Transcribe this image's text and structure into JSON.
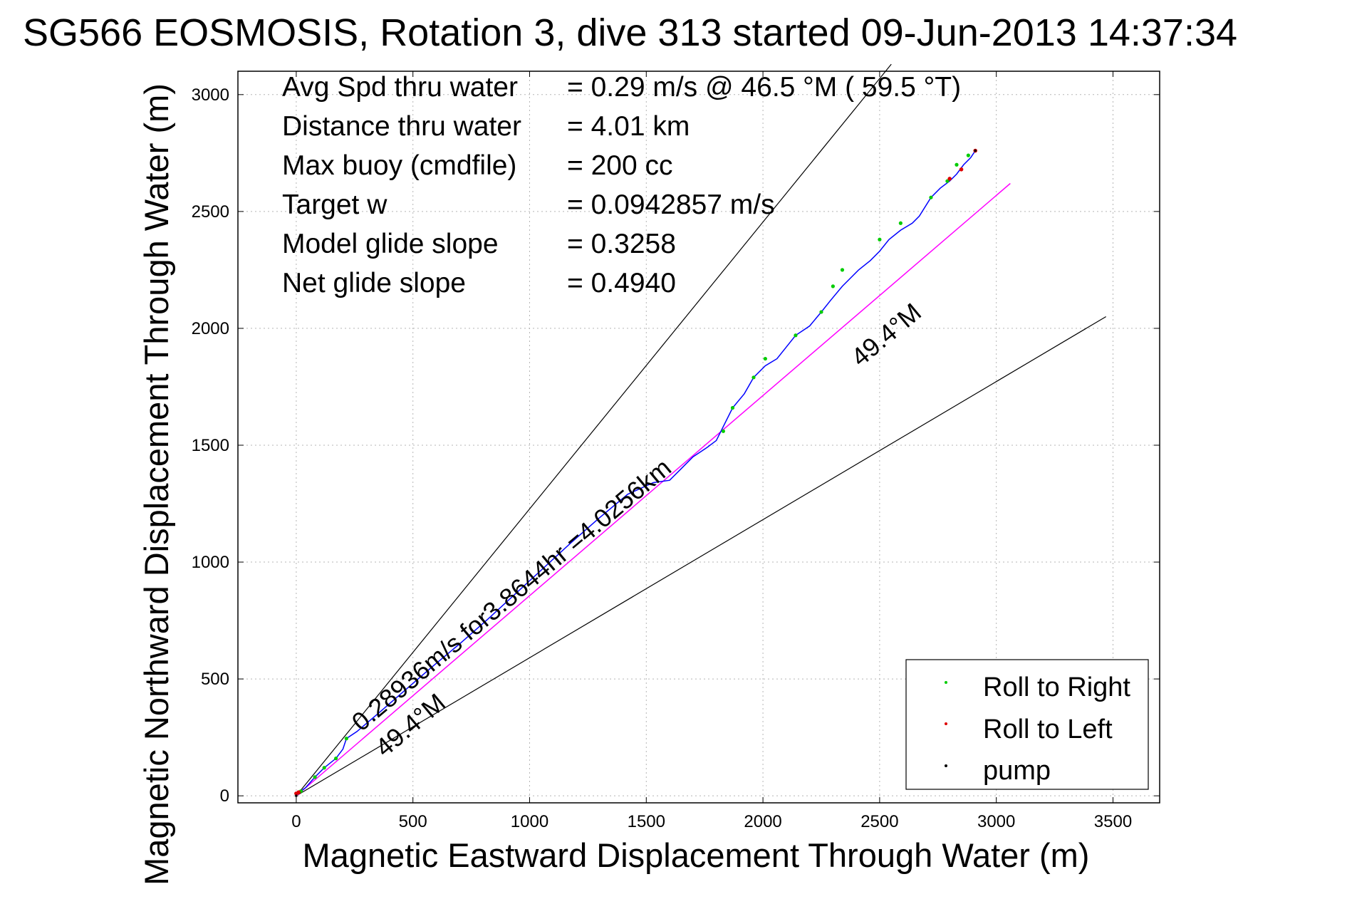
{
  "chart_data": {
    "type": "line",
    "title": "SG566 EOSMOSIS, Rotation 3, dive 313 started 09-Jun-2013 14:37:34",
    "xlabel": "Magnetic Eastward Displacement Through Water (m)",
    "ylabel": "Magnetic Northward Displacement Through Water (m)",
    "xlim": [
      -250,
      3700
    ],
    "ylim": [
      -30,
      3100
    ],
    "xticks": [
      0,
      500,
      1000,
      1500,
      2000,
      2500,
      3000,
      3500
    ],
    "yticks": [
      0,
      500,
      1000,
      1500,
      2000,
      2500,
      3000
    ],
    "grid": true,
    "legend": {
      "placement": "bottom-right",
      "entries": [
        {
          "label": "Roll to Right",
          "color": "#00cc00"
        },
        {
          "label": "Roll to Left",
          "color": "#dd0000"
        },
        {
          "label": "pump",
          "color": "#000000"
        }
      ]
    },
    "info_lines": [
      {
        "label": "Avg Spd thru water",
        "value": "=  0.29 m/s @  46.5 °M ( 59.5 °T)"
      },
      {
        "label": "Distance thru water",
        "value": "=  4.01 km"
      },
      {
        "label": "Max buoy (cmdfile)",
        "value": "= 200 cc"
      },
      {
        "label": "Target w",
        "value": "= 0.0942857 m/s"
      },
      {
        "label": "Model glide slope",
        "value": "= 0.3258"
      },
      {
        "label": "Net glide slope",
        "value": "= 0.4940"
      }
    ],
    "annotations": {
      "course_upper": "49.4°M",
      "course_lower": "49.4°M",
      "speed_note": "0.28936m/s for3.8644hr =4.0256km"
    },
    "series": [
      {
        "name": "track",
        "color": "#0000ff",
        "x": [
          0,
          20,
          40,
          80,
          120,
          170,
          200,
          215,
          260,
          360,
          470,
          580,
          700,
          820,
          940,
          1060,
          1180,
          1300,
          1420,
          1530,
          1600,
          1650,
          1700,
          1760,
          1800,
          1820,
          1870,
          1920,
          1960,
          2010,
          2060,
          2100,
          2140,
          2200,
          2250,
          2290,
          2340,
          2380,
          2410,
          2460,
          2500,
          2540,
          2590,
          2640,
          2670,
          2720,
          2760,
          2800,
          2830,
          2860,
          2890,
          2910
        ],
        "y": [
          10,
          20,
          35,
          80,
          120,
          160,
          200,
          245,
          275,
          360,
          455,
          550,
          650,
          755,
          865,
          975,
          1085,
          1190,
          1290,
          1340,
          1350,
          1400,
          1450,
          1490,
          1520,
          1560,
          1660,
          1720,
          1790,
          1840,
          1870,
          1920,
          1970,
          2010,
          2070,
          2120,
          2180,
          2220,
          2250,
          2290,
          2330,
          2380,
          2420,
          2450,
          2480,
          2560,
          2600,
          2630,
          2660,
          2700,
          2730,
          2760
        ]
      },
      {
        "name": "course",
        "color": "#ff00ff",
        "x": [
          0,
          3060
        ],
        "y": [
          0,
          2620
        ]
      },
      {
        "name": "envelope-upper",
        "color": "#000000",
        "x": [
          0,
          2550
        ],
        "y": [
          0,
          3130
        ]
      },
      {
        "name": "envelope-lower",
        "color": "#000000",
        "x": [
          0,
          3470
        ],
        "y": [
          0,
          2050
        ]
      }
    ],
    "markers": {
      "roll_right": {
        "x": [
          20,
          80,
          120,
          170,
          215,
          1830,
          1870,
          1960,
          2010,
          2140,
          2250,
          2300,
          2340,
          2500,
          2590,
          2720,
          2790,
          2830,
          2880
        ],
        "y": [
          20,
          80,
          120,
          160,
          245,
          1560,
          1660,
          1790,
          1870,
          1970,
          2070,
          2180,
          2250,
          2380,
          2450,
          2560,
          2630,
          2700,
          2740
        ]
      },
      "roll_left": {
        "x": [
          0,
          10,
          2800,
          2850,
          2910
        ],
        "y": [
          10,
          15,
          2640,
          2680,
          2760
        ]
      },
      "pump": {
        "x": [
          0,
          2910
        ],
        "y": [
          0,
          2760
        ]
      }
    }
  }
}
